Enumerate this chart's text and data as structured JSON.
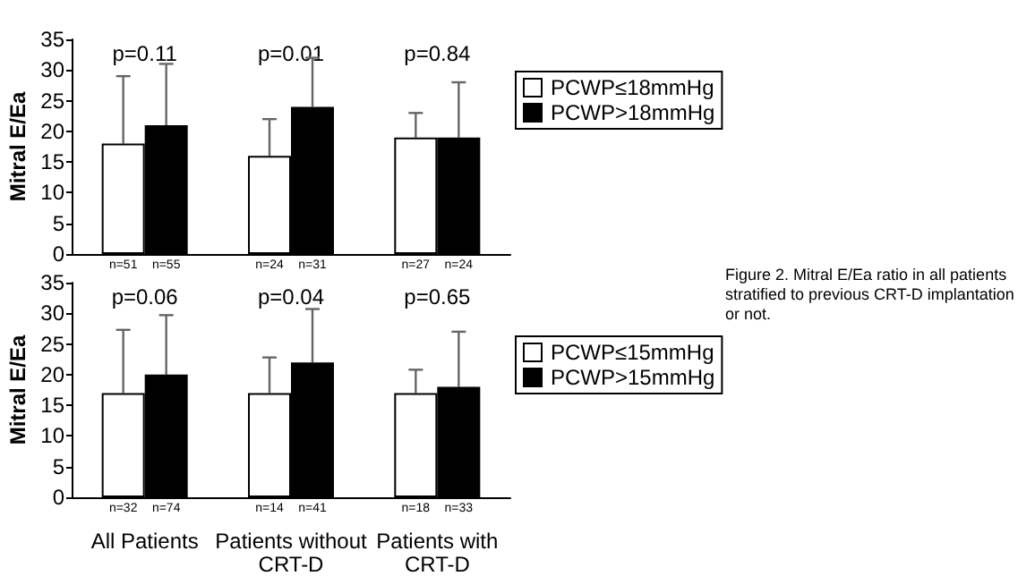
{
  "chart_data": [
    {
      "type": "bar",
      "ylabel": "Mitral E/Ea",
      "categories": [
        "All Patients",
        "Patients without\nCRT-D",
        "Patients with\nCRT-D"
      ],
      "series": [
        {
          "name": "PCWP≤18mmHg",
          "color": "#ffffff",
          "values": [
            18,
            16,
            19
          ],
          "errors": [
            [
              18,
              29
            ],
            [
              16,
              22
            ],
            [
              19,
              23
            ]
          ]
        },
        {
          "name": "PCWP>18mmHg",
          "color": "#000000",
          "values": [
            21,
            24,
            19
          ],
          "errors": [
            [
              21,
              31
            ],
            [
              24,
              32
            ],
            [
              19,
              28
            ]
          ]
        }
      ],
      "ylim": [
        0,
        35
      ],
      "yticks": [
        0,
        5,
        10,
        15,
        20,
        25,
        30,
        35
      ],
      "tick_labels": "y",
      "legend": "right",
      "grid": false,
      "annotations": [
        "p=0.11",
        "p=0.01",
        "p=0.84",
        {
          "text": "n=51",
          "x": "All Patients",
          "y": 0
        },
        {
          "text": "n=55",
          "x": "All Patients",
          "y": 0
        },
        {
          "text": "n=24",
          "x": "Patients without\nCRT-D",
          "y": 0
        },
        {
          "text": "n=31",
          "x": "Patients without\nCRT-D",
          "y": 0
        },
        {
          "text": "n=27",
          "x": "Patients with\nCRT-D",
          "y": 0
        },
        {
          "text": "n=24",
          "x": "Patients with\nCRT-D",
          "y": 0
        }
      ]
    },
    {
      "type": "bar",
      "ylabel": "Mitral E/Ea",
      "categories": [
        "All Patients",
        "Patients without\nCRT-D",
        "Patients with\nCRT-D"
      ],
      "series": [
        {
          "name": "PCWP≤15mmHg",
          "color": "#ffffff",
          "values": [
            17,
            17,
            17
          ],
          "errors": [
            [
              17,
              27.3
            ],
            [
              17,
              22.8
            ],
            [
              17,
              20.8
            ]
          ]
        },
        {
          "name": "PCWP>15mmHg",
          "color": "#000000",
          "values": [
            20,
            22,
            18
          ],
          "errors": [
            [
              20,
              29.7
            ],
            [
              22,
              30.7
            ],
            [
              18,
              27
            ]
          ]
        }
      ],
      "ylim": [
        0,
        35
      ],
      "yticks": [
        0,
        5,
        10,
        15,
        20,
        25,
        30,
        35
      ],
      "legend": "right",
      "grid": false,
      "annotations": [
        "p=0.06",
        "p=0.04",
        "p=0.65",
        {
          "text": "n=32",
          "x": "All Patients",
          "y": 0
        },
        {
          "text": "n=74",
          "x": "All Patients",
          "y": 0
        },
        {
          "text": "n=14",
          "x": "Patients without\nCRT-D",
          "y": 0
        },
        {
          "text": "n=41",
          "x": "Patients without\nCRT-D",
          "y": 0
        },
        {
          "text": "n=18",
          "x": "Patients with\nCRT-D",
          "y": 0
        },
        {
          "text": "n=33",
          "x": "Patients with\nCRT-D",
          "y": 0
        },
        "Figure 2. Mitral E/Ea ratio in all patients stratified to previous CRT-D implantation or not."
      ]
    }
  ]
}
